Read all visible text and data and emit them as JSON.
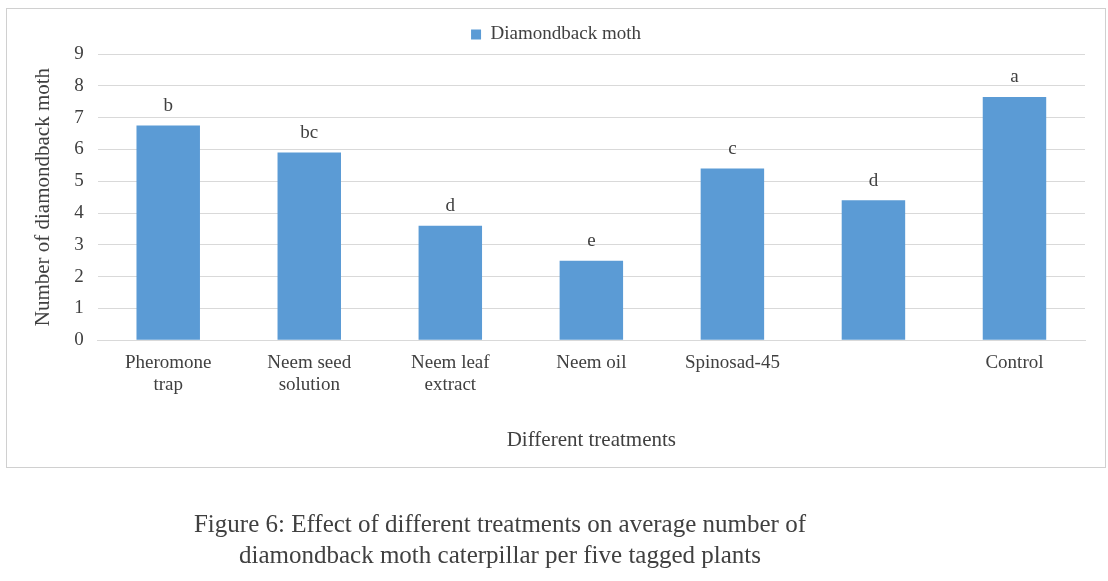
{
  "chart_data": {
    "type": "bar",
    "categories": [
      "Pheromone trap",
      "Neem seed solution",
      "Neem leaf extract",
      "Neem oil",
      "Spinosad-45",
      null,
      "Control"
    ],
    "series": [
      {
        "name": "Diamondback moth",
        "color": "#5b9bd5",
        "values": [
          6.75,
          5.9,
          3.6,
          2.5,
          5.4,
          4.4,
          7.65
        ],
        "value_labels": [
          "b",
          "bc",
          "d",
          "e",
          "c",
          "d",
          "a"
        ]
      }
    ],
    "ylim": [
      0,
      9
    ],
    "yticks": [
      0,
      1,
      2,
      3,
      4,
      5,
      6,
      7,
      8,
      9
    ],
    "grid": "y",
    "legend": "top",
    "xlabel": "Different treatments",
    "ylabel": "Number of diamondback moth",
    "annotations": [
      "Figure 6: Effect of different treatments on average number of diamondback moth caterpillar per five tagged plants"
    ]
  }
}
